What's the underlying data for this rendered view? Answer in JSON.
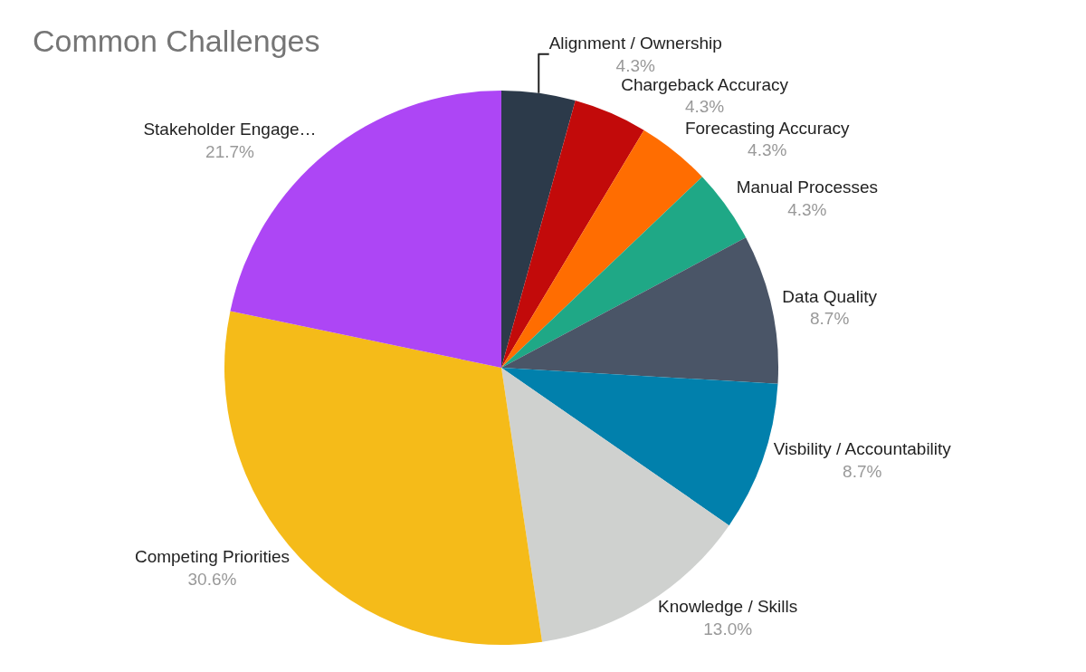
{
  "chart_data": {
    "type": "pie",
    "title": "Common Challenges",
    "categories": [
      "Alignment / Ownership",
      "Chargeback Accuracy",
      "Forecasting Accuracy",
      "Manual Processes",
      "Data Quality",
      "Visbility / Accountability",
      "Knowledge / Skills",
      "Competing Priorities",
      "Stakeholder Engage…"
    ],
    "values": [
      4.3,
      4.3,
      4.3,
      4.3,
      8.7,
      8.7,
      13.0,
      30.6,
      21.7
    ],
    "value_labels": [
      "4.3%",
      "4.3%",
      "4.3%",
      "4.3%",
      "8.7%",
      "8.7%",
      "13.0%",
      "30.6%",
      "21.7%"
    ],
    "colors": [
      "#2c3a4a",
      "#c20a0a",
      "#ff6d01",
      "#1fa886",
      "#4a5567",
      "#0180ac",
      "#cfd1cf",
      "#f5bb19",
      "#ad46f5"
    ],
    "legend": false
  }
}
